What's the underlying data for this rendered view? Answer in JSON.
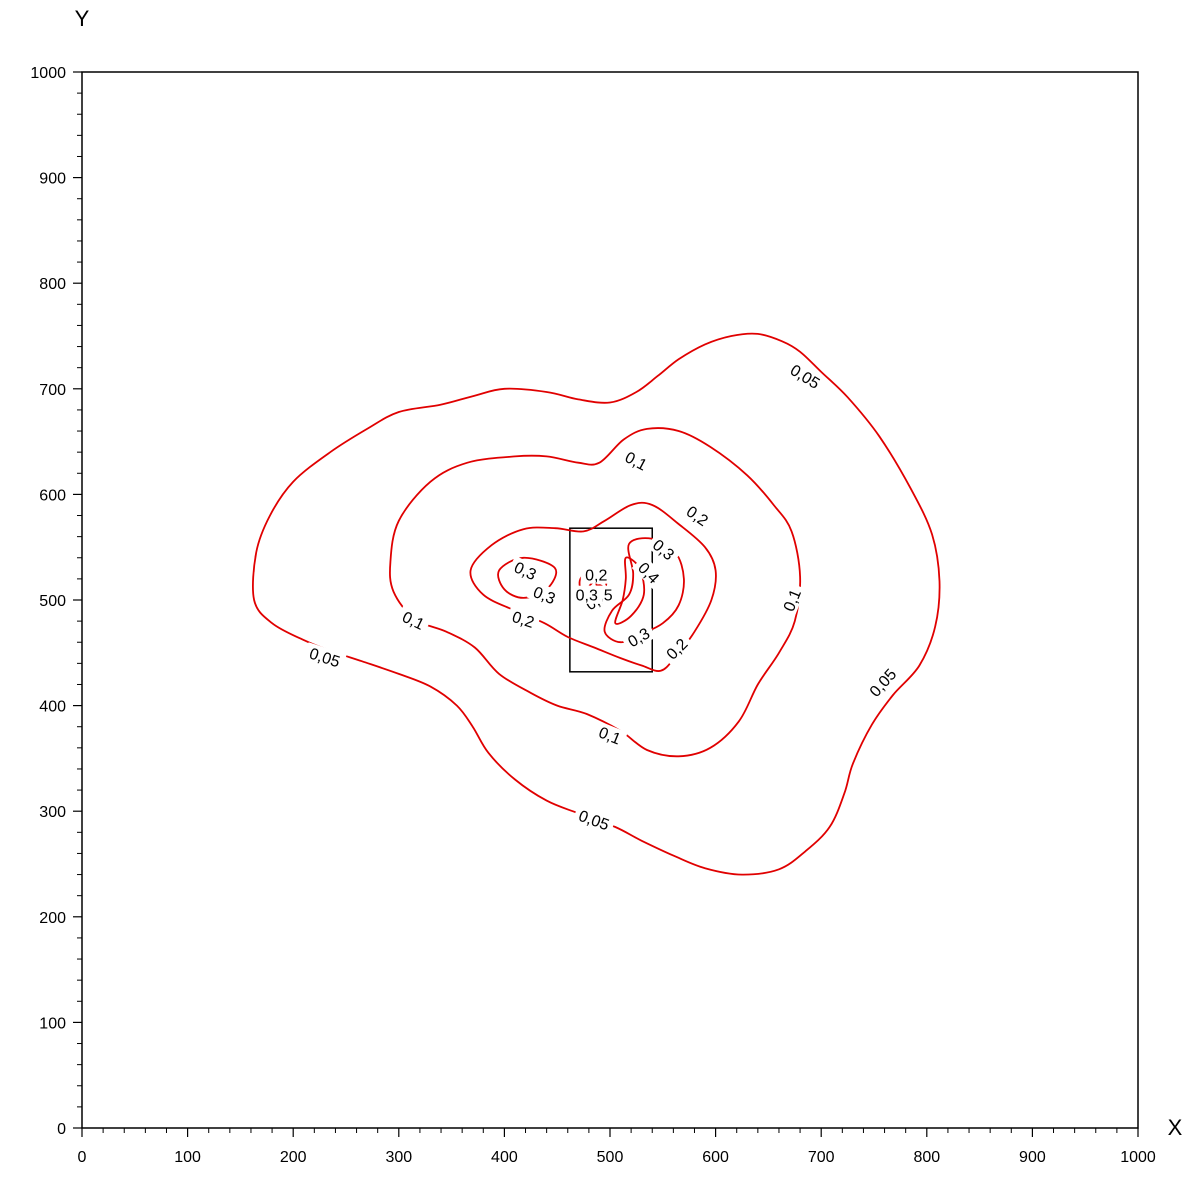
{
  "chart_data": {
    "type": "contour",
    "xlabel": "X",
    "ylabel": "Y",
    "xlim": [
      0,
      1000
    ],
    "ylim": [
      0,
      1000
    ],
    "x_ticks": [
      0,
      100,
      200,
      300,
      400,
      500,
      600,
      700,
      800,
      900,
      1000
    ],
    "y_ticks": [
      0,
      100,
      200,
      300,
      400,
      500,
      600,
      700,
      800,
      900,
      1000
    ],
    "x_tick_labels": [
      "0",
      "100",
      "200",
      "300",
      "400",
      "500",
      "600",
      "700",
      "800",
      "900",
      "1000"
    ],
    "y_tick_labels": [
      "0",
      "100",
      "200",
      "300",
      "400",
      "500",
      "600",
      "700",
      "800",
      "900",
      "1000"
    ],
    "minor_ticks_per_major": 5,
    "grid": false,
    "contour_color": "#e00000",
    "source_rect": {
      "x0": 462,
      "x1": 540,
      "y0": 432,
      "y1": 568
    },
    "contours": [
      {
        "level": "0,05",
        "points": [
          [
            163,
            500
          ],
          [
            165,
            545
          ],
          [
            178,
            580
          ],
          [
            200,
            612
          ],
          [
            235,
            640
          ],
          [
            270,
            662
          ],
          [
            300,
            678
          ],
          [
            340,
            685
          ],
          [
            370,
            693
          ],
          [
            400,
            700
          ],
          [
            440,
            697
          ],
          [
            470,
            690
          ],
          [
            500,
            687
          ],
          [
            525,
            697
          ],
          [
            545,
            712
          ],
          [
            565,
            728
          ],
          [
            590,
            742
          ],
          [
            615,
            750
          ],
          [
            640,
            752
          ],
          [
            663,
            745
          ],
          [
            680,
            735
          ],
          [
            700,
            716
          ],
          [
            725,
            692
          ],
          [
            755,
            655
          ],
          [
            785,
            605
          ],
          [
            805,
            562
          ],
          [
            812,
            518
          ],
          [
            808,
            475
          ],
          [
            793,
            438
          ],
          [
            768,
            410
          ],
          [
            748,
            382
          ],
          [
            730,
            345
          ],
          [
            722,
            317
          ],
          [
            708,
            285
          ],
          [
            685,
            262
          ],
          [
            660,
            245
          ],
          [
            625,
            240
          ],
          [
            590,
            246
          ],
          [
            560,
            258
          ],
          [
            530,
            272
          ],
          [
            505,
            285
          ],
          [
            470,
            298
          ],
          [
            440,
            310
          ],
          [
            410,
            330
          ],
          [
            385,
            355
          ],
          [
            370,
            380
          ],
          [
            355,
            400
          ],
          [
            330,
            418
          ],
          [
            300,
            430
          ],
          [
            265,
            442
          ],
          [
            235,
            452
          ],
          [
            210,
            462
          ],
          [
            180,
            478
          ],
          [
            163,
            500
          ]
        ],
        "labels": [
          {
            "x": 685,
            "y": 712,
            "angle": 32
          },
          {
            "x": 758,
            "y": 422,
            "angle": -48
          },
          {
            "x": 485,
            "y": 292,
            "angle": 20
          },
          {
            "x": 230,
            "y": 446,
            "angle": 18
          }
        ]
      },
      {
        "level": "0,1",
        "points": [
          [
            292,
            536
          ],
          [
            300,
            575
          ],
          [
            330,
            612
          ],
          [
            365,
            630
          ],
          [
            410,
            636
          ],
          [
            440,
            636
          ],
          [
            470,
            630
          ],
          [
            490,
            630
          ],
          [
            513,
            652
          ],
          [
            535,
            662
          ],
          [
            565,
            660
          ],
          [
            595,
            645
          ],
          [
            630,
            618
          ],
          [
            655,
            590
          ],
          [
            672,
            565
          ],
          [
            680,
            522
          ],
          [
            675,
            480
          ],
          [
            660,
            450
          ],
          [
            640,
            420
          ],
          [
            622,
            385
          ],
          [
            595,
            360
          ],
          [
            565,
            352
          ],
          [
            535,
            358
          ],
          [
            510,
            376
          ],
          [
            478,
            392
          ],
          [
            450,
            400
          ],
          [
            425,
            412
          ],
          [
            395,
            430
          ],
          [
            372,
            455
          ],
          [
            345,
            470
          ],
          [
            315,
            482
          ],
          [
            295,
            508
          ],
          [
            292,
            536
          ]
        ],
        "labels": [
          {
            "x": 525,
            "y": 632,
            "angle": 28
          },
          {
            "x": 672,
            "y": 500,
            "angle": -68
          },
          {
            "x": 500,
            "y": 372,
            "angle": 22
          },
          {
            "x": 314,
            "y": 481,
            "angle": 26
          }
        ]
      },
      {
        "level": "0,2",
        "points": [
          [
            368,
            528
          ],
          [
            388,
            552
          ],
          [
            418,
            567
          ],
          [
            448,
            568
          ],
          [
            475,
            565
          ],
          [
            495,
            575
          ],
          [
            520,
            590
          ],
          [
            540,
            590
          ],
          [
            565,
            572
          ],
          [
            590,
            550
          ],
          [
            600,
            528
          ],
          [
            596,
            500
          ],
          [
            580,
            470
          ],
          [
            562,
            446
          ],
          [
            548,
            433
          ],
          [
            530,
            438
          ],
          [
            510,
            445
          ],
          [
            485,
            455
          ],
          [
            460,
            465
          ],
          [
            438,
            478
          ],
          [
            410,
            490
          ],
          [
            380,
            505
          ],
          [
            368,
            528
          ]
        ],
        "labels": [
          {
            "x": 583,
            "y": 580,
            "angle": 35
          },
          {
            "x": 563,
            "y": 454,
            "angle": -45
          },
          {
            "x": 418,
            "y": 482,
            "angle": 18
          }
        ]
      },
      {
        "level": "0,3",
        "points": [
          [
            395,
            528
          ],
          [
            418,
            540
          ],
          [
            448,
            530
          ],
          [
            440,
            510
          ],
          [
            418,
            502
          ],
          [
            400,
            510
          ],
          [
            395,
            528
          ]
        ],
        "labels": [
          {
            "x": 420,
            "y": 528,
            "angle": 25
          },
          {
            "x": 438,
            "y": 505,
            "angle": 22
          }
        ]
      },
      {
        "level": "0,3",
        "points": [
          [
            518,
            553
          ],
          [
            540,
            558
          ],
          [
            562,
            545
          ],
          [
            570,
            520
          ],
          [
            565,
            495
          ],
          [
            550,
            478
          ],
          [
            530,
            468
          ],
          [
            510,
            460
          ],
          [
            495,
            470
          ],
          [
            502,
            490
          ],
          [
            518,
            505
          ],
          [
            522,
            525
          ],
          [
            518,
            553
          ]
        ],
        "labels": [
          {
            "x": 551,
            "y": 548,
            "angle": 40
          },
          {
            "x": 527,
            "y": 465,
            "angle": -30
          }
        ]
      },
      {
        "level": "0,4",
        "points": [
          [
            515,
            540
          ],
          [
            528,
            530
          ],
          [
            532,
            505
          ],
          [
            520,
            485
          ],
          [
            505,
            478
          ],
          [
            512,
            500
          ],
          [
            515,
            520
          ],
          [
            515,
            540
          ]
        ],
        "labels": [
          {
            "x": 537,
            "y": 526,
            "angle": 45
          }
        ]
      },
      {
        "level": "0,2",
        "points": [
          [
            472,
            520
          ],
          [
            486,
            530
          ],
          [
            496,
            522
          ],
          [
            494,
            505
          ],
          [
            484,
            498
          ],
          [
            474,
            505
          ],
          [
            472,
            520
          ]
        ],
        "labels": [
          {
            "x": 487,
            "y": 524,
            "angle": 0
          },
          {
            "x": 487,
            "y": 500,
            "angle": -30
          }
        ]
      },
      {
        "level": "0,5",
        "points": [
          [
            482,
            508
          ],
          [
            490,
            514
          ],
          [
            496,
            508
          ],
          [
            490,
            502
          ],
          [
            482,
            508
          ]
        ],
        "labels": [
          {
            "x": 492,
            "y": 505,
            "angle": 0
          }
        ]
      },
      {
        "level": "0,3",
        "points": [
          [
            480,
            512
          ],
          [
            485,
            517
          ],
          [
            488,
            512
          ],
          [
            484,
            508
          ],
          [
            480,
            512
          ]
        ],
        "labels": [
          {
            "x": 478,
            "y": 505,
            "angle": 0
          }
        ]
      }
    ]
  }
}
